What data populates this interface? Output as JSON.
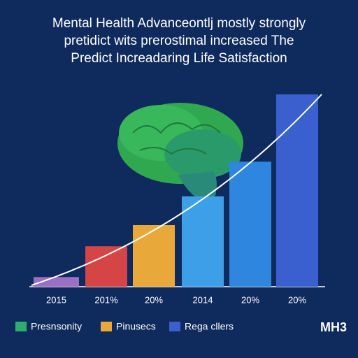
{
  "chart_data": {
    "type": "bar",
    "title_lines": [
      "Mental Health Advanceontlj mostly strongly",
      "pretidict wits prerostimal increased The",
      "Predict Increadaring Life Satisfaction"
    ],
    "categories": [
      "2015",
      "201%",
      "20%",
      "2014",
      "20%",
      "20%"
    ],
    "values": [
      5,
      21,
      32,
      47,
      65,
      100
    ],
    "colors": [
      "#9b6fc4",
      "#d64545",
      "#e8a93a",
      "#3d9fe8",
      "#2e86de",
      "#3a5fcf"
    ],
    "ylim": [
      0,
      100
    ],
    "legend": [
      {
        "name": "Presnsonity",
        "color": "#2eae6e"
      },
      {
        "name": "Pinusecs",
        "color": "#e8a93a"
      },
      {
        "name": "Rega cllers",
        "color": "#3a5fcf"
      }
    ],
    "logo": "MH3"
  }
}
